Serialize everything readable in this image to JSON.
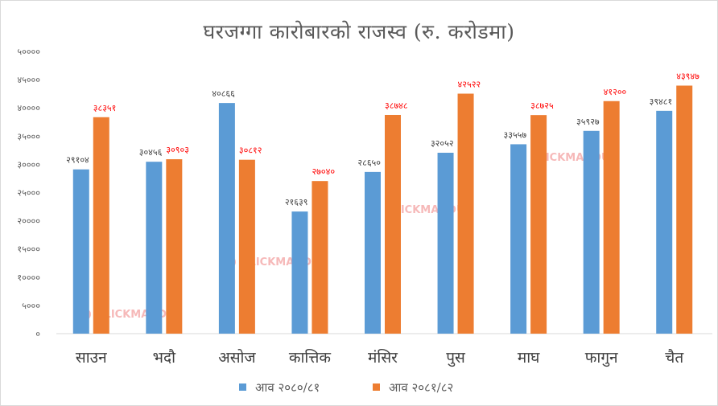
{
  "chart_data": {
    "type": "bar",
    "title": "घरजग्गा कारोबारको राजस्व (रु. करोडमा)",
    "xlabel": "",
    "ylabel": "",
    "ylim": [
      0,
      50000
    ],
    "yticks": [
      0,
      5000,
      10000,
      15000,
      20000,
      25000,
      30000,
      35000,
      40000,
      45000,
      50000
    ],
    "ytick_labels": [
      "०",
      "५०००",
      "१००००",
      "१५०००",
      "२००००",
      "२५०००",
      "३००००",
      "३५०००",
      "४००००",
      "४५०००",
      "५००००"
    ],
    "grid": false,
    "legend_position": "bottom",
    "categories": [
      "साउन",
      "भदौ",
      "असोज",
      "कात्तिक",
      "मंसिर",
      "पुस",
      "माघ",
      "फागुन",
      "चैत"
    ],
    "series": [
      {
        "name": "आव २०८०/८१",
        "color": "#5b9bd5",
        "values": [
          29104,
          30456,
          40866,
          21639,
          28650,
          32052,
          33557,
          35927,
          39481
        ],
        "labels": [
          "२९१०४",
          "३०४५६",
          "४०८६६",
          "२१६३९",
          "२८६५०",
          "३२०५२",
          "३३५५७",
          "३५९२७",
          "३९४८१"
        ]
      },
      {
        "name": "आव २०८१/८२",
        "color": "#ed7d31",
        "values": [
          38351,
          30903,
          30812,
          27040,
          38748,
          42522,
          38725,
          41200,
          43947
        ],
        "labels": [
          "३८३५१",
          "३०९०३",
          "३०८१२",
          "२७०४०",
          "३८७४८",
          "४२५२२",
          "३८७२५",
          "४१२००",
          "४३९४७"
        ]
      }
    ]
  },
  "watermark": "CLICKMANDU"
}
